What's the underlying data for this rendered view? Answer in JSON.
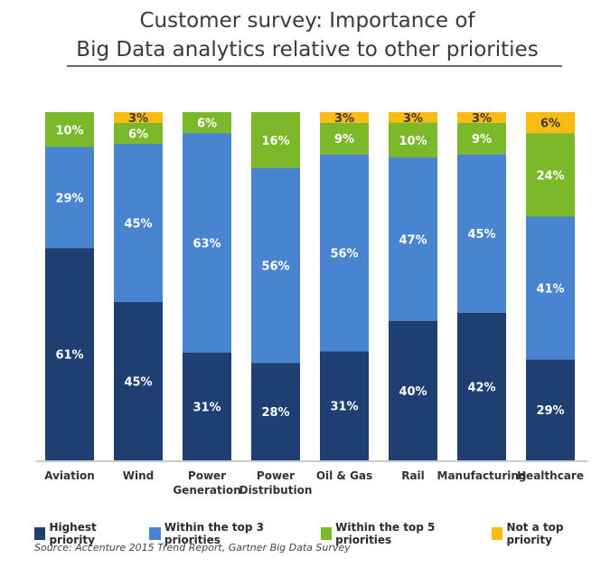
{
  "chart_data": {
    "type": "bar",
    "stacked": true,
    "title": [
      "Customer survey: Importance of",
      "Big Data analytics relative to other priorities"
    ],
    "categories": [
      [
        "Aviation"
      ],
      [
        "Wind"
      ],
      [
        "Power",
        "Generation"
      ],
      [
        "Power",
        "Distribution"
      ],
      [
        "Oil & Gas"
      ],
      [
        "Rail"
      ],
      [
        "Manufacturing"
      ],
      [
        "Healthcare"
      ]
    ],
    "series": [
      {
        "name": "Highest priority",
        "color": "#1f3e72",
        "label_color": "#ffffff",
        "values": [
          61,
          45,
          31,
          28,
          31,
          40,
          42,
          29
        ]
      },
      {
        "name": "Within the top 3 priorities",
        "color": "#4884d0",
        "label_color": "#ffffff",
        "values": [
          29,
          45,
          63,
          56,
          56,
          47,
          45,
          41
        ]
      },
      {
        "name": "Within the top 5 priorities",
        "color": "#7bb92a",
        "label_color": "#ffffff",
        "values": [
          10,
          6,
          6,
          16,
          9,
          10,
          9,
          24
        ]
      },
      {
        "name": "Not a top priority",
        "color": "#fdbb12",
        "label_color": "#3a3a3a",
        "values": [
          0,
          3,
          0,
          0,
          3,
          3,
          3,
          6
        ]
      }
    ],
    "ylim": [
      0,
      100
    ],
    "legend": "bottom",
    "grid": false,
    "source": "Source: Accenture 2015 Trend Report, Gartner Big Data Survey"
  }
}
